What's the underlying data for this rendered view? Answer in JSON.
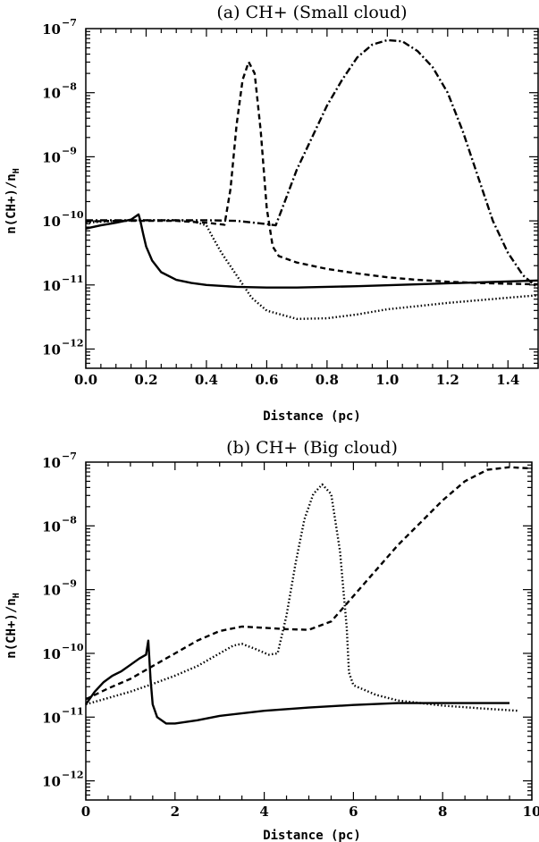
{
  "chart_data": [
    {
      "type": "line",
      "title": "(a) CH+ (Small cloud)",
      "xlabel": "Distance (pc)",
      "ylabel": {
        "main": "n(CH+)/n",
        "sub": "H"
      },
      "xlim": [
        0,
        1.5
      ],
      "ylim_exponent": [
        -12.3,
        -7
      ],
      "y_scale": "log",
      "x_ticks": [
        "0.0",
        "0.2",
        "0.4",
        "0.6",
        "0.8",
        "1.0",
        "1.2",
        "1.4"
      ],
      "x_tick_values": [
        0,
        0.2,
        0.4,
        0.6,
        0.8,
        1.0,
        1.2,
        1.4
      ],
      "y_ticks": [
        {
          "base": "10",
          "exp": "−7",
          "value": -7
        },
        {
          "base": "10",
          "exp": "−8",
          "value": -8
        },
        {
          "base": "10",
          "exp": "−9",
          "value": -9
        },
        {
          "base": "10",
          "exp": "−10",
          "value": -10
        },
        {
          "base": "10",
          "exp": "−11",
          "value": -11
        },
        {
          "base": "10",
          "exp": "−12",
          "value": -12
        }
      ],
      "series": [
        {
          "style": "solid",
          "x": [
            0,
            0.05,
            0.1,
            0.15,
            0.175,
            0.18,
            0.19,
            0.2,
            0.22,
            0.25,
            0.3,
            0.35,
            0.4,
            0.5,
            0.6,
            0.7,
            0.9,
            1.1,
            1.3,
            1.5
          ],
          "log10_y": [
            -10.12,
            -10.07,
            -10.03,
            -9.98,
            -9.9,
            -9.98,
            -10.2,
            -10.4,
            -10.62,
            -10.8,
            -10.92,
            -10.97,
            -11.0,
            -11.03,
            -11.04,
            -11.04,
            -11.02,
            -10.99,
            -10.96,
            -10.93
          ]
        },
        {
          "style": "dotted",
          "x": [
            0,
            0.1,
            0.2,
            0.3,
            0.35,
            0.4,
            0.42,
            0.45,
            0.5,
            0.55,
            0.6,
            0.7,
            0.8,
            0.9,
            1.0,
            1.1,
            1.2,
            1.3,
            1.4,
            1.5
          ],
          "log10_y": [
            -10.03,
            -10.0,
            -9.99,
            -9.99,
            -10.0,
            -10.07,
            -10.25,
            -10.5,
            -10.85,
            -11.2,
            -11.4,
            -11.53,
            -11.52,
            -11.46,
            -11.38,
            -11.33,
            -11.28,
            -11.24,
            -11.2,
            -11.16
          ]
        },
        {
          "style": "dashed",
          "x": [
            0,
            0.1,
            0.2,
            0.3,
            0.4,
            0.46,
            0.48,
            0.5,
            0.52,
            0.54,
            0.56,
            0.58,
            0.6,
            0.62,
            0.64,
            0.7,
            0.8,
            0.9,
            1.0,
            1.1,
            1.2,
            1.3,
            1.4,
            1.5
          ],
          "log10_y": [
            -10.01,
            -10.0,
            -10.0,
            -10.0,
            -10.03,
            -10.06,
            -9.5,
            -8.5,
            -7.8,
            -7.52,
            -7.7,
            -8.6,
            -9.8,
            -10.4,
            -10.55,
            -10.65,
            -10.75,
            -10.82,
            -10.88,
            -10.92,
            -10.95,
            -10.97,
            -10.98,
            -10.99
          ]
        },
        {
          "style": "dashdot",
          "x": [
            0,
            0.1,
            0.2,
            0.3,
            0.4,
            0.5,
            0.6,
            0.63,
            0.66,
            0.7,
            0.75,
            0.8,
            0.85,
            0.9,
            0.95,
            1.0,
            1.05,
            1.1,
            1.15,
            1.2,
            1.25,
            1.3,
            1.35,
            1.4,
            1.45,
            1.5
          ],
          "log10_y": [
            -9.99,
            -9.99,
            -9.99,
            -9.99,
            -9.99,
            -10.0,
            -10.05,
            -10.07,
            -9.7,
            -9.2,
            -8.7,
            -8.2,
            -7.8,
            -7.45,
            -7.25,
            -7.18,
            -7.2,
            -7.35,
            -7.6,
            -8.0,
            -8.6,
            -9.3,
            -10.0,
            -10.5,
            -10.85,
            -11.05
          ]
        }
      ]
    },
    {
      "type": "line",
      "title": "(b) CH+ (Big cloud)",
      "xlabel": "Distance (pc)",
      "ylabel": {
        "main": "n(CH+)/n",
        "sub": "H"
      },
      "xlim": [
        0,
        10
      ],
      "ylim_exponent": [
        -12.3,
        -7
      ],
      "y_scale": "log",
      "x_ticks": [
        "0",
        "2",
        "4",
        "6",
        "8",
        "10"
      ],
      "x_tick_values": [
        0,
        2,
        4,
        6,
        8,
        10
      ],
      "y_ticks": [
        {
          "base": "10",
          "exp": "−7",
          "value": -7
        },
        {
          "base": "10",
          "exp": "−8",
          "value": -8
        },
        {
          "base": "10",
          "exp": "−9",
          "value": -9
        },
        {
          "base": "10",
          "exp": "−10",
          "value": -10
        },
        {
          "base": "10",
          "exp": "−11",
          "value": -11
        },
        {
          "base": "10",
          "exp": "−12",
          "value": -12
        }
      ],
      "series": [
        {
          "style": "solid",
          "x": [
            0,
            0.2,
            0.4,
            0.6,
            0.8,
            1.0,
            1.2,
            1.35,
            1.4,
            1.45,
            1.5,
            1.6,
            1.8,
            2.0,
            2.5,
            3,
            4,
            5,
            6,
            7,
            8,
            9,
            9.5
          ],
          "log10_y": [
            -10.8,
            -10.6,
            -10.45,
            -10.35,
            -10.28,
            -10.18,
            -10.08,
            -10.02,
            -9.8,
            -10.4,
            -10.8,
            -11.0,
            -11.1,
            -11.1,
            -11.05,
            -10.98,
            -10.9,
            -10.85,
            -10.81,
            -10.78,
            -10.78,
            -10.78,
            -10.78
          ]
        },
        {
          "style": "dotted",
          "x": [
            0,
            0.5,
            1,
            1.5,
            2,
            2.5,
            3,
            3.3,
            3.5,
            3.8,
            4.1,
            4.3,
            4.5,
            4.7,
            4.9,
            5.1,
            5.3,
            5.5,
            5.7,
            5.85,
            5.9,
            6.0,
            6.5,
            7,
            8,
            9,
            9.7
          ],
          "log10_y": [
            -10.8,
            -10.7,
            -10.6,
            -10.48,
            -10.35,
            -10.2,
            -10.0,
            -9.88,
            -9.85,
            -9.93,
            -10.02,
            -10.0,
            -9.4,
            -8.6,
            -7.9,
            -7.5,
            -7.35,
            -7.5,
            -8.4,
            -9.6,
            -10.3,
            -10.5,
            -10.65,
            -10.74,
            -10.82,
            -10.87,
            -10.9
          ]
        },
        {
          "style": "dashed",
          "x": [
            0,
            0.5,
            1,
            1.5,
            2,
            2.5,
            3,
            3.5,
            4,
            4.5,
            5,
            5.5,
            6,
            6.5,
            7,
            7.5,
            8,
            8.5,
            9,
            9.5,
            10
          ],
          "log10_y": [
            -10.72,
            -10.55,
            -10.4,
            -10.2,
            -10.0,
            -9.8,
            -9.65,
            -9.58,
            -9.6,
            -9.62,
            -9.63,
            -9.5,
            -9.1,
            -8.7,
            -8.3,
            -7.95,
            -7.6,
            -7.3,
            -7.12,
            -7.08,
            -7.1
          ]
        }
      ]
    }
  ]
}
